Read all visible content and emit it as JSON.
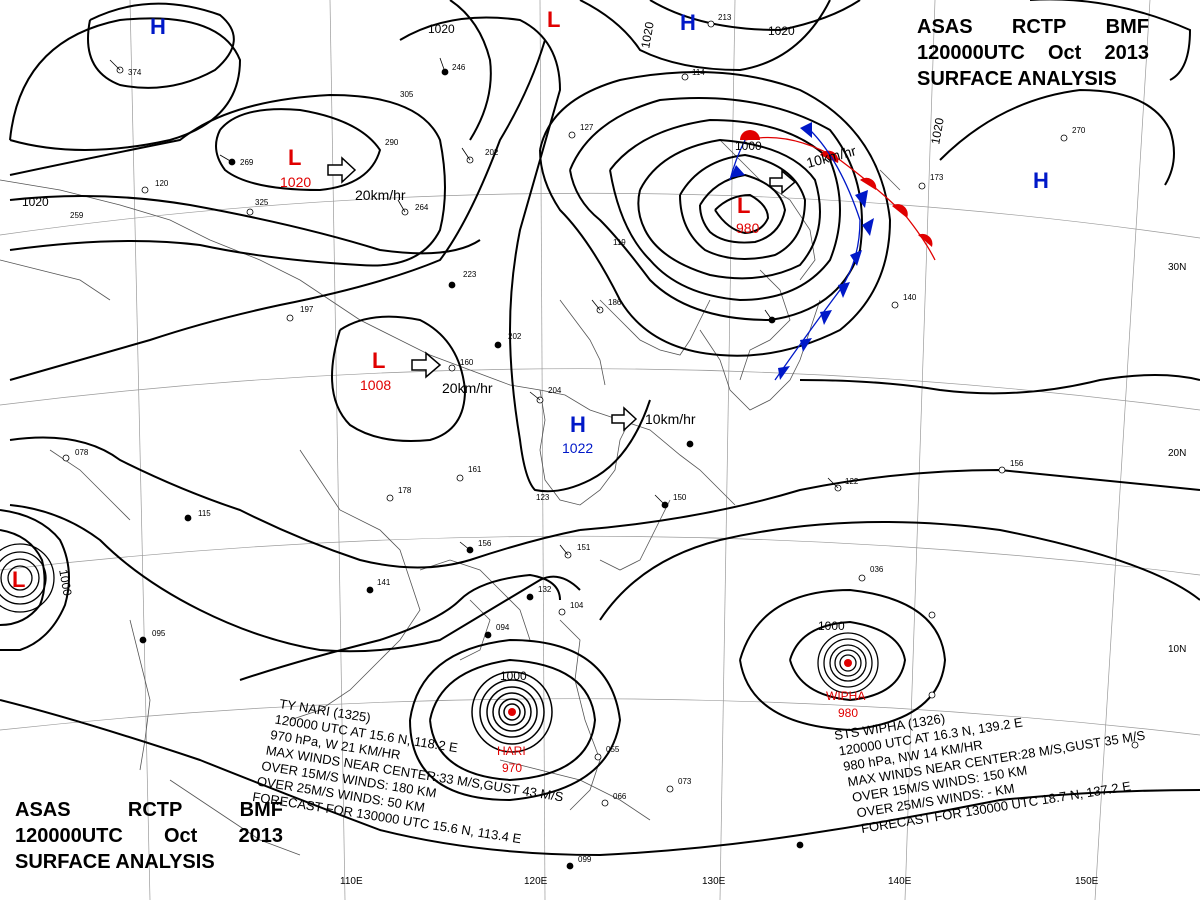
{
  "title": {
    "line1": [
      "ASAS",
      "RCTP",
      "BMF"
    ],
    "line2": [
      "120000UTC",
      "Oct",
      "2013"
    ],
    "line3": "SURFACE  ANALYSIS"
  },
  "isobars": {
    "labels": [
      "1020",
      "1020",
      "1020",
      "1020",
      "1020",
      "1000",
      "1000",
      "1000",
      "1000"
    ]
  },
  "pressure_centers": [
    {
      "type": "H",
      "value": "",
      "color": "#0018c8"
    },
    {
      "type": "L",
      "value": "",
      "color": "#e00000"
    },
    {
      "type": "H",
      "value": "",
      "color": "#0018c8"
    },
    {
      "type": "H",
      "value": "",
      "color": "#0018c8"
    },
    {
      "type": "L",
      "value": "1020",
      "color": "#e00000"
    },
    {
      "type": "L",
      "value": "980",
      "color": "#e00000"
    },
    {
      "type": "L",
      "value": "1008",
      "color": "#e00000"
    },
    {
      "type": "H",
      "value": "1022",
      "color": "#0018c8"
    },
    {
      "type": "L",
      "value": "",
      "color": "#e00000"
    }
  ],
  "motions": [
    "20km/hr",
    "10km/hr",
    "20km/hr",
    "10km/hr"
  ],
  "typhoons": [
    {
      "name": "HARI",
      "pressure": "970"
    },
    {
      "name": "WIPHA",
      "pressure": "980"
    }
  ],
  "nari_info": [
    "TY NARI  (1325)",
    "120000 UTC  AT 15.6 N, 118.2 E",
    "970 hPa, W  21 KM/HR",
    "MAX WINDS NEAR CENTER:33 M/S,GUST 43 M/S",
    "OVER 15M/S WINDS: 180 KM",
    "OVER 25M/S WINDS: 50 KM",
    "FORECAST FOR 130000 UTC 15.6 N, 113.4 E"
  ],
  "wipha_info": [
    "STS  WIPHA  (1326)",
    "120000 UTC  AT 16.3 N, 139.2 E",
    "980 hPa, NW  14 KM/HR",
    "MAX WINDS NEAR CENTER:28 M/S,GUST 35 M/S",
    "OVER 15M/S WINDS: 150 KM",
    "OVER 25M/S WINDS: - KM",
    "FORECAST FOR 130000 UTC 18.7 N, 137.2 E"
  ],
  "lat_labels": [
    "30N",
    "20N",
    "10N"
  ],
  "lon_labels": [
    "110E",
    "120E",
    "130E",
    "140E",
    "150E"
  ],
  "station_numbers": [
    "374",
    "246",
    "305",
    "290",
    "202",
    "127",
    "114",
    "269",
    "264",
    "325",
    "120",
    "259",
    "223",
    "197",
    "186",
    "160",
    "119",
    "202",
    "204",
    "178",
    "173",
    "161",
    "156",
    "151",
    "141",
    "132",
    "123",
    "115",
    "104",
    "094",
    "095",
    "078",
    "066",
    "073",
    "055",
    "099",
    "122",
    "150",
    "036",
    "140",
    "156",
    "213",
    "270"
  ]
}
